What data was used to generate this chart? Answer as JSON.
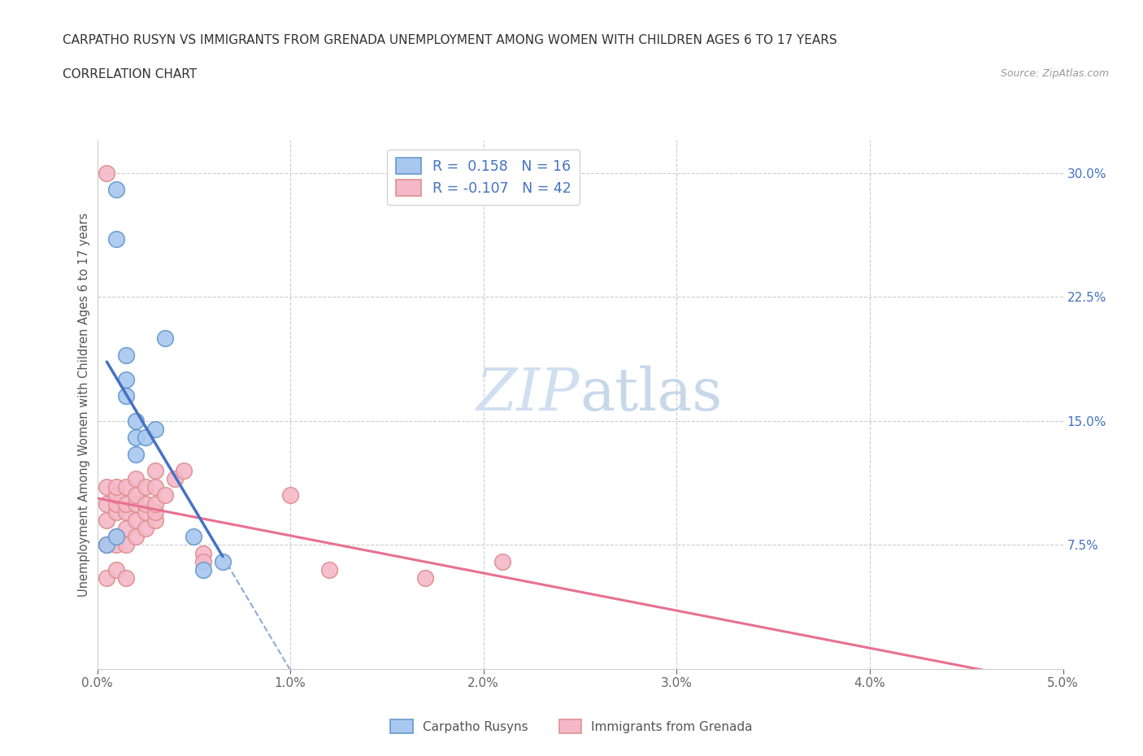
{
  "title": "CARPATHO RUSYN VS IMMIGRANTS FROM GRENADA UNEMPLOYMENT AMONG WOMEN WITH CHILDREN AGES 6 TO 17 YEARS",
  "subtitle": "CORRELATION CHART",
  "source": "Source: ZipAtlas.com",
  "ylabel": "Unemployment Among Women with Children Ages 6 to 17 years",
  "xlim": [
    0.0,
    0.05
  ],
  "ylim": [
    0.0,
    0.32
  ],
  "xticks": [
    0.0,
    0.01,
    0.02,
    0.03,
    0.04,
    0.05
  ],
  "xticklabels": [
    "0.0%",
    "1.0%",
    "2.0%",
    "3.0%",
    "4.0%",
    "5.0%"
  ],
  "yticks_right": [
    0.075,
    0.15,
    0.225,
    0.3
  ],
  "yticklabels_right": [
    "7.5%",
    "15.0%",
    "22.5%",
    "30.0%"
  ],
  "color_blue_fill": "#A8C8F0",
  "color_blue_edge": "#6699CC",
  "color_pink_fill": "#F4B8C8",
  "color_pink_edge": "#E09090",
  "color_blue_line": "#4472C4",
  "color_pink_line": "#E87090",
  "color_grid": "#cccccc",
  "watermark_color": "#d0dff0",
  "carpatho_x": [
    0.0005,
    0.001,
    0.001,
    0.001,
    0.0015,
    0.0015,
    0.0015,
    0.002,
    0.002,
    0.002,
    0.0025,
    0.003,
    0.0035,
    0.005,
    0.0055,
    0.0065
  ],
  "carpatho_y": [
    0.075,
    0.29,
    0.26,
    0.08,
    0.175,
    0.165,
    0.19,
    0.14,
    0.15,
    0.13,
    0.14,
    0.145,
    0.2,
    0.08,
    0.06,
    0.065
  ],
  "grenada_x": [
    0.0005,
    0.0005,
    0.0005,
    0.0005,
    0.0005,
    0.0005,
    0.001,
    0.001,
    0.001,
    0.001,
    0.001,
    0.001,
    0.001,
    0.0015,
    0.0015,
    0.0015,
    0.0015,
    0.0015,
    0.0015,
    0.002,
    0.002,
    0.002,
    0.002,
    0.002,
    0.0025,
    0.0025,
    0.0025,
    0.0025,
    0.003,
    0.003,
    0.003,
    0.003,
    0.003,
    0.0035,
    0.004,
    0.0045,
    0.0055,
    0.0055,
    0.01,
    0.012,
    0.017,
    0.021
  ],
  "grenada_y": [
    0.055,
    0.075,
    0.09,
    0.1,
    0.11,
    0.3,
    0.06,
    0.075,
    0.08,
    0.095,
    0.1,
    0.105,
    0.11,
    0.055,
    0.075,
    0.085,
    0.095,
    0.1,
    0.11,
    0.08,
    0.09,
    0.1,
    0.105,
    0.115,
    0.085,
    0.095,
    0.1,
    0.11,
    0.09,
    0.095,
    0.1,
    0.11,
    0.12,
    0.105,
    0.115,
    0.12,
    0.07,
    0.065,
    0.105,
    0.06,
    0.055,
    0.065
  ]
}
